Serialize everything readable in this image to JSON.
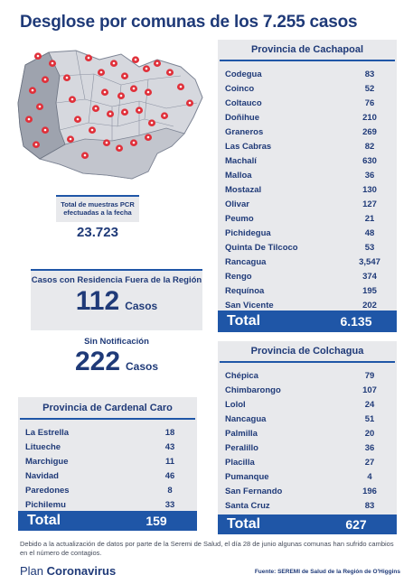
{
  "title": "Desglose por comunas de los 7.255 casos",
  "pcr": {
    "label": "Total de muestras PCR efectuadas a la fecha",
    "value": "23.723"
  },
  "residencia": {
    "label": "Casos con Residencia Fuera de la Región",
    "value": "112",
    "unit": "Casos"
  },
  "sin_notificacion": {
    "label": "Sin Notificación",
    "value": "222",
    "unit": "Casos"
  },
  "cachapoal": {
    "title": "Provincia de Cachapoal",
    "rows": [
      {
        "name": "Codegua",
        "value": "83"
      },
      {
        "name": "Coinco",
        "value": "52"
      },
      {
        "name": "Coltauco",
        "value": "76"
      },
      {
        "name": "Doñihue",
        "value": "210"
      },
      {
        "name": "Graneros",
        "value": "269"
      },
      {
        "name": "Las Cabras",
        "value": "82"
      },
      {
        "name": "Machalí",
        "value": "630"
      },
      {
        "name": "Malloa",
        "value": "36"
      },
      {
        "name": "Mostazal",
        "value": "130"
      },
      {
        "name": "Olivar",
        "value": "127"
      },
      {
        "name": "Peumo",
        "value": "21"
      },
      {
        "name": "Pichidegua",
        "value": "48"
      },
      {
        "name": "Quinta De Tilcoco",
        "value": "53"
      },
      {
        "name": "Rancagua",
        "value": "3,547"
      },
      {
        "name": "Rengo",
        "value": "374"
      },
      {
        "name": "Requínoa",
        "value": "195"
      },
      {
        "name": "San Vicente",
        "value": "202"
      }
    ],
    "total_label": "Total",
    "total": "6.135"
  },
  "colchagua": {
    "title": "Provincia de Colchagua",
    "rows": [
      {
        "name": "Chépica",
        "value": "79"
      },
      {
        "name": "Chimbarongo",
        "value": "107"
      },
      {
        "name": "Lolol",
        "value": "24"
      },
      {
        "name": "Nancagua",
        "value": "51"
      },
      {
        "name": "Palmilla",
        "value": "20"
      },
      {
        "name": "Peralillo",
        "value": "36"
      },
      {
        "name": "Placilla",
        "value": "27"
      },
      {
        "name": "Pumanque",
        "value": "4"
      },
      {
        "name": "San Fernando",
        "value": "196"
      },
      {
        "name": "Santa Cruz",
        "value": "83"
      }
    ],
    "total_label": "Total",
    "total": "627"
  },
  "cardenal_caro": {
    "title": "Provincia de Cardenal Caro",
    "rows": [
      {
        "name": "La Estrella",
        "value": "18"
      },
      {
        "name": "Litueche",
        "value": "43"
      },
      {
        "name": "Marchigue",
        "value": "11"
      },
      {
        "name": "Navidad",
        "value": "46"
      },
      {
        "name": "Paredones",
        "value": "8"
      },
      {
        "name": "Pichilemu",
        "value": "33"
      }
    ],
    "total_label": "Total",
    "total": "159"
  },
  "footnote": "Debido a la actualización de datos por parte de la Seremi de Salud, el día 28 de junio algunas comunas han sufrido cambios en el número de contagios.",
  "brand": {
    "plain": "Plan",
    "bold": "Coronavirus"
  },
  "source": "Fuente: SEREMI de Salud de la Región de O'Higgins",
  "colors": {
    "navy": "#1f3a78",
    "accent": "#1f56a7",
    "panel": "#e8e9ec",
    "pin": "#e0303a"
  }
}
